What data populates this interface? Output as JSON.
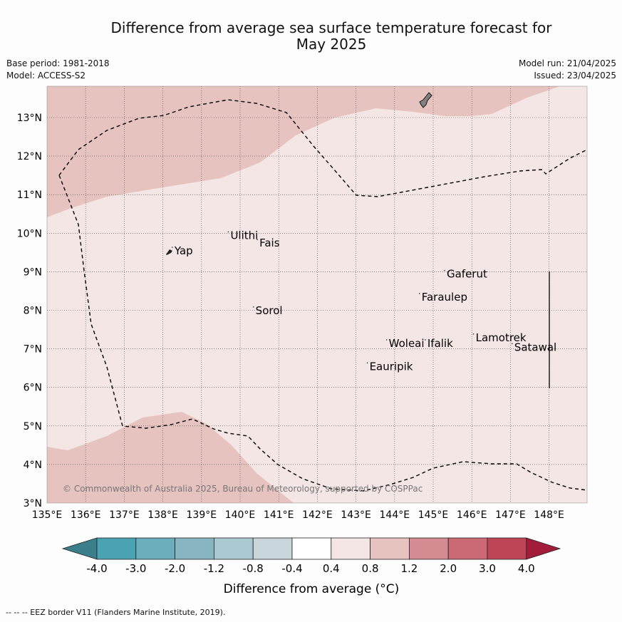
{
  "title_line1": "Difference from average sea surface temperature forecast for",
  "title_line2": "May 2025",
  "base_period": "Base period: 1981-2018",
  "model": "Model: ACCESS-S2",
  "model_run": "Model run: 21/04/2025",
  "issued": "Issued: 23/04/2025",
  "lat_labels": [
    "3°N",
    "4°N",
    "5°N",
    "6°N",
    "7°N",
    "8°N",
    "9°N",
    "10°N",
    "11°N",
    "12°N",
    "13°N"
  ],
  "lon_labels": [
    "135°E",
    "136°E",
    "137°E",
    "138°E",
    "139°E",
    "140°E",
    "141°E",
    "142°E",
    "143°E",
    "144°E",
    "145°E",
    "146°E",
    "147°E",
    "148°E"
  ],
  "places": [
    {
      "name": "Yap",
      "lon": 138.3,
      "lat": 9.45
    },
    {
      "name": "Ulithi",
      "lon": 139.75,
      "lat": 9.85
    },
    {
      "name": "Fais",
      "lon": 140.5,
      "lat": 9.65
    },
    {
      "name": "Sorol",
      "lon": 140.4,
      "lat": 7.9
    },
    {
      "name": "Gaferut",
      "lon": 145.35,
      "lat": 8.85
    },
    {
      "name": "Faraulep",
      "lon": 144.7,
      "lat": 8.25
    },
    {
      "name": "Woleai",
      "lon": 143.85,
      "lat": 7.05
    },
    {
      "name": "Ifalik",
      "lon": 144.85,
      "lat": 7.05
    },
    {
      "name": "Lamotrek",
      "lon": 146.1,
      "lat": 7.2
    },
    {
      "name": "Satawal",
      "lon": 147.1,
      "lat": 6.95
    },
    {
      "name": "Eauripik",
      "lon": 143.35,
      "lat": 6.45
    }
  ],
  "copyright": "© Commonwealth of Australia 2025, Bureau of Meteorology, supported by COSPPac",
  "colorbar": {
    "labels": [
      "-4.0",
      "-3.0",
      "-2.0",
      "-1.2",
      "-0.8",
      "-0.4",
      "0.4",
      "0.8",
      "1.2",
      "2.0",
      "3.0",
      "4.0"
    ],
    "low_colors": [
      "#3b7f8c",
      "#4aa3b3",
      "#6aaebc",
      "#88b5c2",
      "#aac8cf",
      "#c8d6db"
    ],
    "mid_color": "#ffffff",
    "high_colors": [
      "#f4e6e4",
      "#e6c3bf",
      "#d48b92",
      "#cb6a74",
      "#be4555",
      "#a31d3a"
    ],
    "xlabel": "Difference from average (°C)"
  },
  "legend_footnote": "--  --  -- EEZ border V11 (Flanders Marine Institute, 2019).",
  "colors": {
    "light_anomaly": "#f4e6e4",
    "medium_anomaly": "#e6c3bf",
    "land": "#808080",
    "eez": "#000000"
  }
}
